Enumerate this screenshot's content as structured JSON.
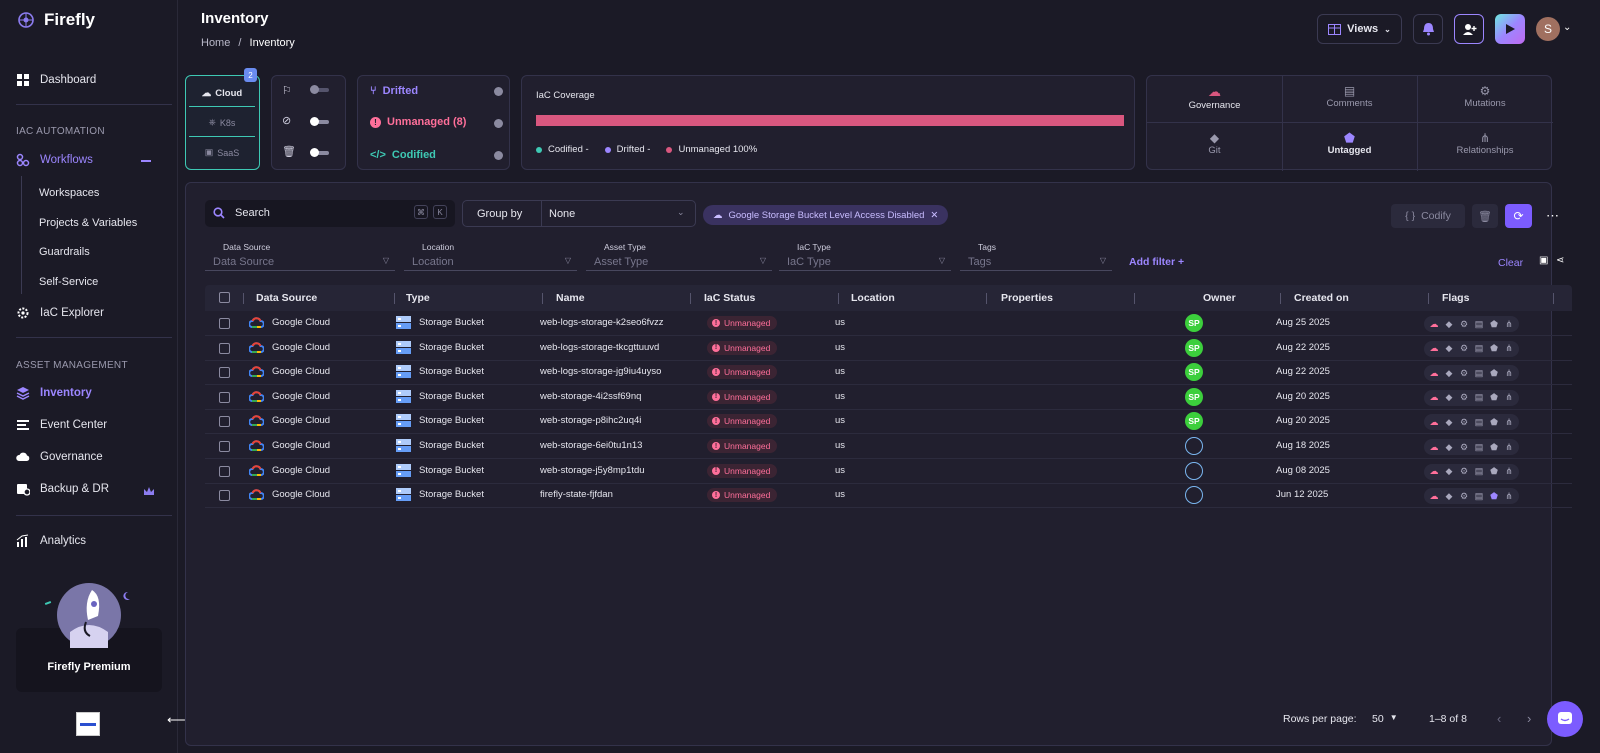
{
  "app": {
    "name": "Firefly"
  },
  "sidebar": {
    "dashboard": "Dashboard",
    "iac_section": "IAC AUTOMATION",
    "workflows": "Workflows",
    "workflow_children": [
      "Workspaces",
      "Projects & Variables",
      "Guardrails",
      "Self-Service"
    ],
    "iac_explorer": "IaC Explorer",
    "asset_section": "ASSET MANAGEMENT",
    "inventory": "Inventory",
    "event_center": "Event Center",
    "governance": "Governance",
    "backup": "Backup & DR",
    "analytics": "Analytics",
    "premium": "Firefly Premium"
  },
  "header": {
    "title": "Inventory",
    "crumb_home": "Home",
    "crumb_sep": "/",
    "crumb_current": "Inventory",
    "views": "Views",
    "avatar": "S"
  },
  "providers": {
    "badge": "2",
    "cloud": "Cloud",
    "k8s": "K8s",
    "saas": "SaaS"
  },
  "status": {
    "drifted": "Drifted",
    "unmanaged": "Unmanaged (8)",
    "codified": "Codified"
  },
  "coverage": {
    "title": "IaC Coverage",
    "codified": "Codified -",
    "drifted": "Drifted -",
    "unmanaged": "Unmanaged 100%",
    "unmanaged_fraction": 1.0
  },
  "insights": {
    "governance": "Governance",
    "comments": "Comments",
    "mutations": "Mutations",
    "git": "Git",
    "untagged": "Untagged",
    "relationships": "Relationships"
  },
  "toolbar": {
    "search_placeholder": "Search",
    "kbd1": "⌘",
    "kbd2": "K",
    "group_by": "Group by",
    "group_value": "None",
    "chip": "Google Storage Bucket Level Access Disabled",
    "codify": "Codify"
  },
  "filters": [
    {
      "label": "Data Source",
      "placeholder": "Data Source"
    },
    {
      "label": "Location",
      "placeholder": "Location"
    },
    {
      "label": "Asset Type",
      "placeholder": "Asset Type"
    },
    {
      "label": "IaC Type",
      "placeholder": "IaC Type"
    },
    {
      "label": "Tags",
      "placeholder": "Tags"
    }
  ],
  "add_filter": "Add filter +",
  "clear": "Clear",
  "table": {
    "headers": {
      "data_source": "Data Source",
      "type": "Type",
      "name": "Name",
      "iac_status": "IaC Status",
      "location": "Location",
      "properties": "Properties",
      "owner": "Owner",
      "created": "Created on",
      "flags": "Flags"
    },
    "rows": [
      {
        "source": "Google Cloud",
        "type": "Storage Bucket",
        "name": "web-logs-storage-k2seo6fvzz",
        "status": "Unmanaged",
        "location": "us",
        "owner": "SP",
        "created": "Aug 25 2025"
      },
      {
        "source": "Google Cloud",
        "type": "Storage Bucket",
        "name": "web-logs-storage-tkcgttuuvd",
        "status": "Unmanaged",
        "location": "us",
        "owner": "SP",
        "created": "Aug 22 2025"
      },
      {
        "source": "Google Cloud",
        "type": "Storage Bucket",
        "name": "web-logs-storage-jg9iu4uyso",
        "status": "Unmanaged",
        "location": "us",
        "owner": "SP",
        "created": "Aug 22 2025"
      },
      {
        "source": "Google Cloud",
        "type": "Storage Bucket",
        "name": "web-storage-4i2ssf69nq",
        "status": "Unmanaged",
        "location": "us",
        "owner": "SP",
        "created": "Aug 20 2025"
      },
      {
        "source": "Google Cloud",
        "type": "Storage Bucket",
        "name": "web-storage-p8ihc2uq4i",
        "status": "Unmanaged",
        "location": "us",
        "owner": "SP",
        "created": "Aug 20 2025"
      },
      {
        "source": "Google Cloud",
        "type": "Storage Bucket",
        "name": "web-storage-6ei0tu1n13",
        "status": "Unmanaged",
        "location": "us",
        "owner": "",
        "created": "Aug 18 2025"
      },
      {
        "source": "Google Cloud",
        "type": "Storage Bucket",
        "name": "web-storage-j5y8mp1tdu",
        "status": "Unmanaged",
        "location": "us",
        "owner": "",
        "created": "Aug 08 2025"
      },
      {
        "source": "Google Cloud",
        "type": "Storage Bucket",
        "name": "firefly-state-fjfdan",
        "status": "Unmanaged",
        "location": "us",
        "owner": "",
        "created": "Jun 12 2025"
      }
    ]
  },
  "pagination": {
    "rows_label": "Rows per page:",
    "rows_value": "50",
    "range": "1–8 of 8"
  },
  "colors": {
    "accent": "#7c5cff",
    "unmanaged": "#d9577f",
    "codified": "#3ec9b4",
    "green": "#3ccf3c"
  }
}
